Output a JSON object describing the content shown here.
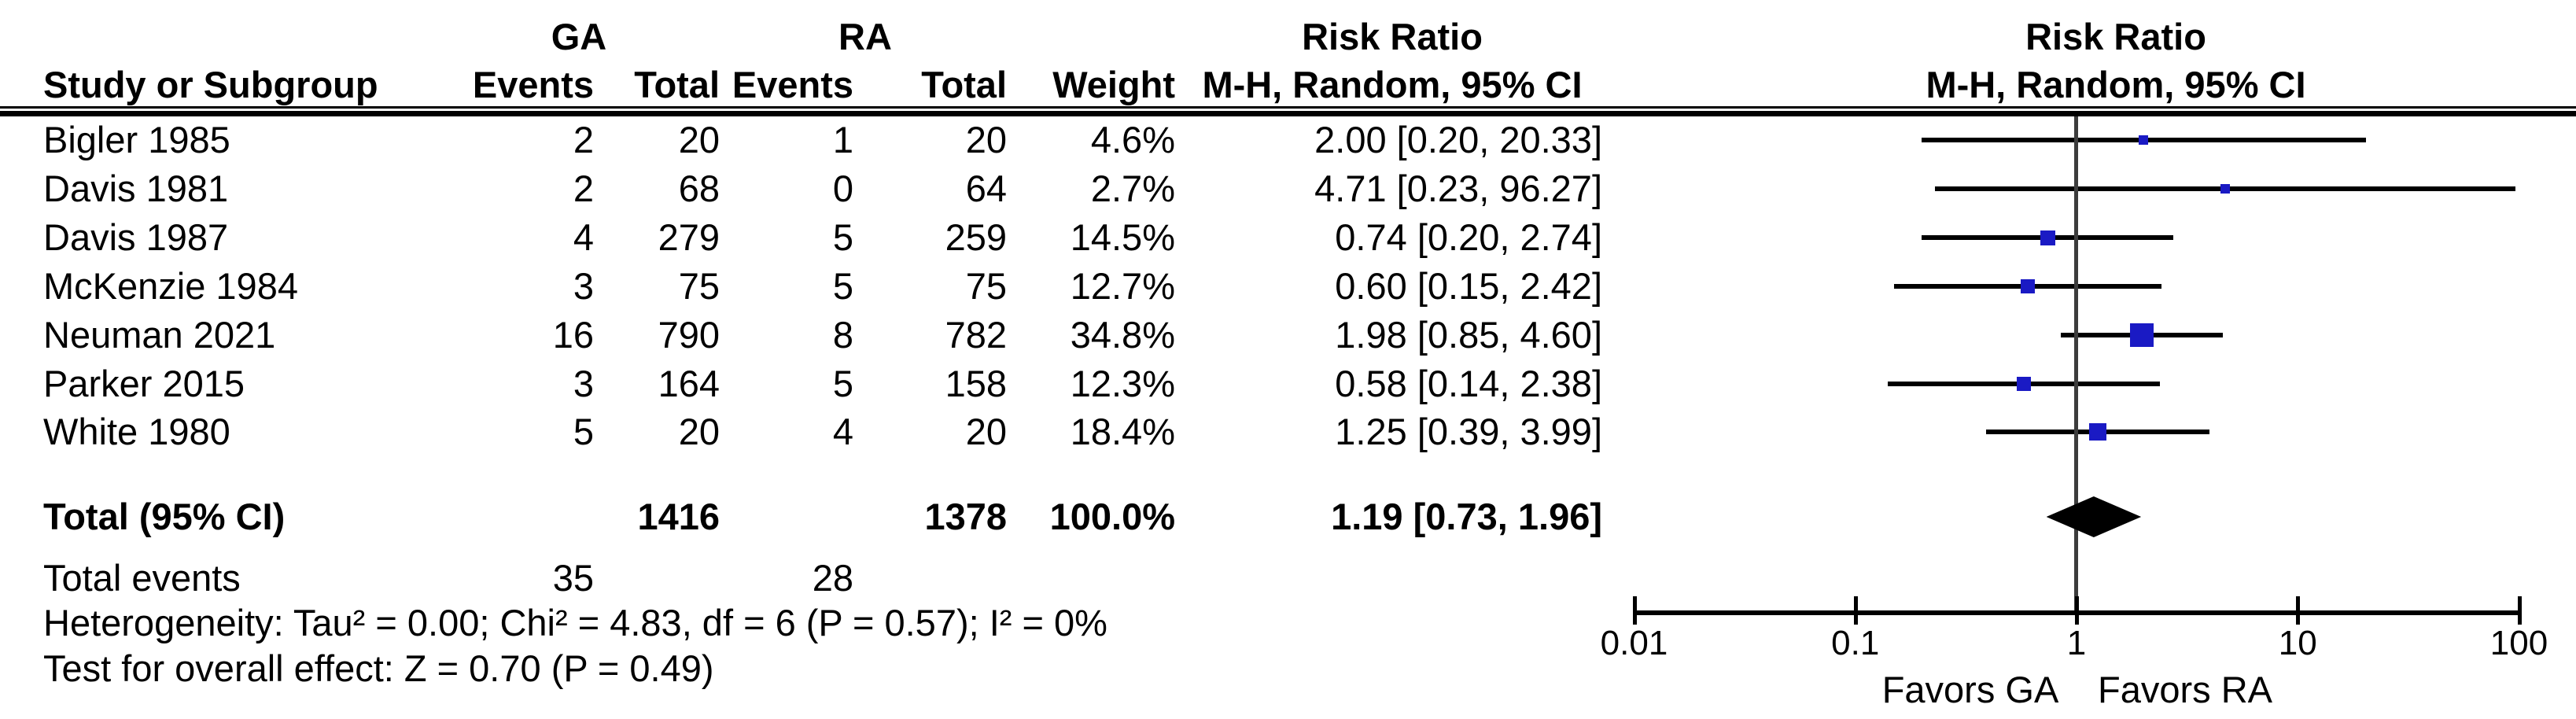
{
  "chart_data": {
    "type": "scatter",
    "chart_kind": "forest-plot",
    "effect_measure": "Risk Ratio",
    "method_label": "M-H, Random, 95% CI",
    "x_scale": "log10",
    "x_range": [
      0.01,
      100
    ],
    "x_ticks": [
      0.01,
      0.1,
      1,
      10,
      100
    ],
    "x_tick_labels": [
      "0.01",
      "0.1",
      "1",
      "10",
      "100"
    ],
    "favors_left": "Favors GA",
    "favors_right": "Favors RA",
    "group_labels": {
      "left": "GA",
      "right": "RA"
    },
    "headers": {
      "study": "Study or Subgroup",
      "events": "Events",
      "total": "Total",
      "weight": "Weight",
      "ci": "M-H, Random, 95% CI",
      "risk_ratio": "Risk Ratio"
    },
    "studies": [
      {
        "name": "Bigler 1985",
        "ga_events": 2,
        "ga_total": 20,
        "ra_events": 1,
        "ra_total": 20,
        "weight": "4.6%",
        "weight_pct": 4.6,
        "rr": 2.0,
        "ci_low": 0.2,
        "ci_high": 20.33,
        "ci_text": "2.00 [0.20, 20.33]"
      },
      {
        "name": "Davis 1981",
        "ga_events": 2,
        "ga_total": 68,
        "ra_events": 0,
        "ra_total": 64,
        "weight": "2.7%",
        "weight_pct": 2.7,
        "rr": 4.71,
        "ci_low": 0.23,
        "ci_high": 96.27,
        "ci_text": "4.71 [0.23, 96.27]"
      },
      {
        "name": "Davis 1987",
        "ga_events": 4,
        "ga_total": 279,
        "ra_events": 5,
        "ra_total": 259,
        "weight": "14.5%",
        "weight_pct": 14.5,
        "rr": 0.74,
        "ci_low": 0.2,
        "ci_high": 2.74,
        "ci_text": "0.74 [0.20, 2.74]"
      },
      {
        "name": "McKenzie 1984",
        "ga_events": 3,
        "ga_total": 75,
        "ra_events": 5,
        "ra_total": 75,
        "weight": "12.7%",
        "weight_pct": 12.7,
        "rr": 0.6,
        "ci_low": 0.15,
        "ci_high": 2.42,
        "ci_text": "0.60 [0.15, 2.42]"
      },
      {
        "name": "Neuman 2021",
        "ga_events": 16,
        "ga_total": 790,
        "ra_events": 8,
        "ra_total": 782,
        "weight": "34.8%",
        "weight_pct": 34.8,
        "rr": 1.98,
        "ci_low": 0.85,
        "ci_high": 4.6,
        "ci_text": "1.98 [0.85, 4.60]"
      },
      {
        "name": "Parker 2015",
        "ga_events": 3,
        "ga_total": 164,
        "ra_events": 5,
        "ra_total": 158,
        "weight": "12.3%",
        "weight_pct": 12.3,
        "rr": 0.58,
        "ci_low": 0.14,
        "ci_high": 2.38,
        "ci_text": "0.58 [0.14, 2.38]"
      },
      {
        "name": "White 1980",
        "ga_events": 5,
        "ga_total": 20,
        "ra_events": 4,
        "ra_total": 20,
        "weight": "18.4%",
        "weight_pct": 18.4,
        "rr": 1.25,
        "ci_low": 0.39,
        "ci_high": 3.99,
        "ci_text": "1.25 [0.39, 3.99]"
      }
    ],
    "total": {
      "label": "Total (95% CI)",
      "ga_total": 1416,
      "ra_total": 1378,
      "weight": "100.0%",
      "rr": 1.19,
      "ci_low": 0.73,
      "ci_high": 1.96,
      "ci_text": "1.19 [0.73, 1.96]"
    },
    "total_events": {
      "label": "Total events",
      "ga": 35,
      "ra": 28
    },
    "heterogeneity": "Heterogeneity: Tau² = 0.00; Chi² = 4.83, df = 6 (P = 0.57); I² = 0%",
    "overall_effect": "Test for overall effect: Z = 0.70 (P = 0.49)",
    "colors": {
      "marker": "#1a1ac4",
      "diamond": "#000000",
      "ci_line": "#000000",
      "center_line": "#3c3c3c",
      "axis": "#000000",
      "text": "#000000"
    }
  }
}
